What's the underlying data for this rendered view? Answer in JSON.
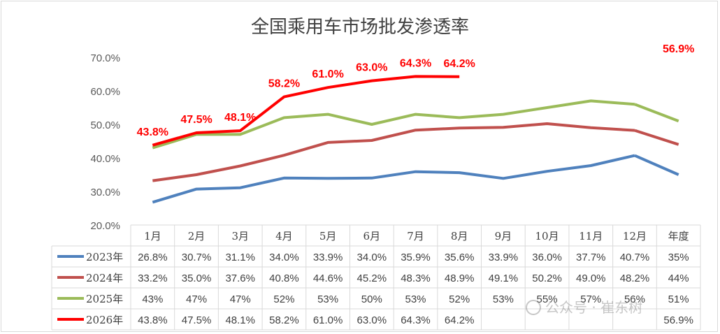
{
  "chart_data": {
    "type": "line",
    "title": "全国乘用车市场批发渗透率",
    "categories": [
      "1月",
      "2月",
      "3月",
      "4月",
      "5月",
      "6月",
      "7月",
      "8月",
      "9月",
      "10月",
      "11月",
      "12月",
      "年度"
    ],
    "ylim": [
      20.0,
      70.0
    ],
    "yticks": [
      "20.0%",
      "30.0%",
      "40.0%",
      "50.0%",
      "60.0%",
      "70.0%"
    ],
    "grid": false,
    "legend": "data-table",
    "series": [
      {
        "name": "2023年",
        "color": "#4F81BD",
        "values": [
          26.8,
          30.7,
          31.1,
          34.0,
          33.9,
          34.0,
          35.9,
          35.6,
          33.9,
          36.0,
          37.7,
          40.7,
          35
        ],
        "table": [
          "26.8%",
          "30.7%",
          "31.1%",
          "34.0%",
          "33.9%",
          "34.0%",
          "35.9%",
          "35.6%",
          "33.9%",
          "36.0%",
          "37.7%",
          "40.7%",
          "35%"
        ]
      },
      {
        "name": "2024年",
        "color": "#C0504D",
        "values": [
          33.2,
          35.0,
          37.6,
          40.8,
          44.6,
          45.2,
          48.3,
          48.9,
          49.1,
          50.2,
          49.0,
          48.2,
          44
        ],
        "table": [
          "33.2%",
          "35.0%",
          "37.6%",
          "40.8%",
          "44.6%",
          "45.2%",
          "48.3%",
          "48.9%",
          "49.1%",
          "50.2%",
          "49.0%",
          "48.2%",
          "44%"
        ]
      },
      {
        "name": "2025年",
        "color": "#9BBB59",
        "values": [
          43,
          47,
          47,
          52,
          53,
          50,
          53,
          52,
          53,
          55,
          57,
          56,
          51
        ],
        "table": [
          "43%",
          "47%",
          "47%",
          "52%",
          "53%",
          "50%",
          "53%",
          "52%",
          "53%",
          "55%",
          "57%",
          "56%",
          "51%"
        ]
      },
      {
        "name": "2026年",
        "color": "#FF0000",
        "values": [
          43.8,
          47.5,
          48.1,
          58.2,
          61.0,
          63.0,
          64.3,
          64.2,
          null,
          null,
          null,
          null,
          56.9
        ],
        "table": [
          "43.8%",
          "47.5%",
          "48.1%",
          "58.2%",
          "61.0%",
          "63.0%",
          "64.3%",
          "64.2%",
          "",
          "",
          "",
          "",
          "56.9%"
        ],
        "data_labels": [
          "43.8%",
          "47.5%",
          "48.1%",
          "58.2%",
          "61.0%",
          "63.0%",
          "64.3%",
          "64.2%",
          "",
          "",
          "",
          "",
          "56.9%"
        ]
      }
    ]
  },
  "watermark": {
    "text": "公众号 · 崔东树"
  }
}
